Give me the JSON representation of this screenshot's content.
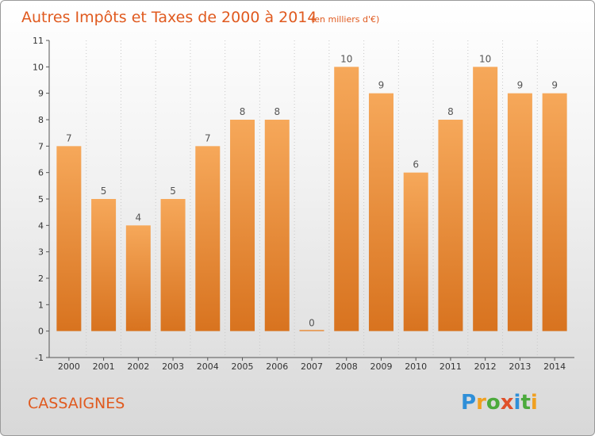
{
  "title": "Autres Impôts et Taxes de 2000 à 2014",
  "unit_note": "(en milliers d'€)",
  "city": "CASSAIGNES",
  "logo_text": "Proxiti",
  "colors": {
    "bar_top": "#f6a85a",
    "bar_bottom": "#d8731f",
    "title": "#e05a1f"
  },
  "chart_data": {
    "type": "bar",
    "categories": [
      "2000",
      "2001",
      "2002",
      "2003",
      "2004",
      "2005",
      "2006",
      "2007",
      "2008",
      "2009",
      "2010",
      "2011",
      "2012",
      "2013",
      "2014"
    ],
    "values": [
      7,
      5,
      4,
      5,
      7,
      8,
      8,
      0,
      10,
      9,
      6,
      8,
      10,
      9,
      9
    ],
    "ylim": [
      -1,
      11
    ],
    "yticks": [
      "-1",
      "0",
      "1",
      "2",
      "3",
      "4",
      "5",
      "6",
      "7",
      "8",
      "9",
      "10",
      "11"
    ],
    "grid": "vertical",
    "xlabel": "",
    "ylabel": ""
  }
}
